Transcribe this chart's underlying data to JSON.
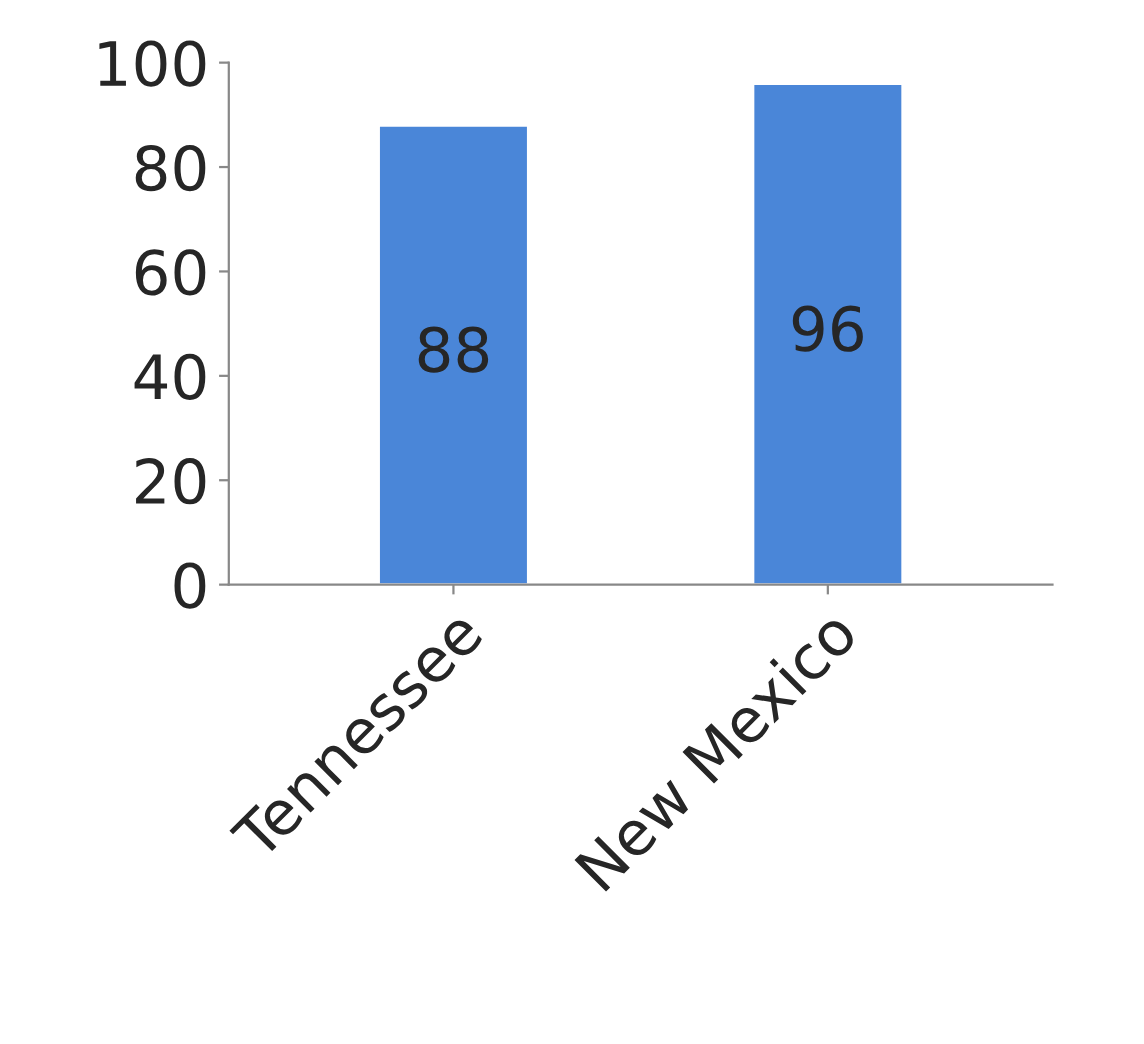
{
  "chart_data": {
    "type": "bar",
    "categories": [
      "Tennessee",
      "New Mexico"
    ],
    "values": [
      88,
      96
    ],
    "color": "#4a86d8",
    "ylim": [
      0,
      100
    ],
    "yticks": [
      0,
      20,
      40,
      60,
      80,
      100
    ],
    "data_labels": true,
    "grid": false,
    "legend": false
  }
}
